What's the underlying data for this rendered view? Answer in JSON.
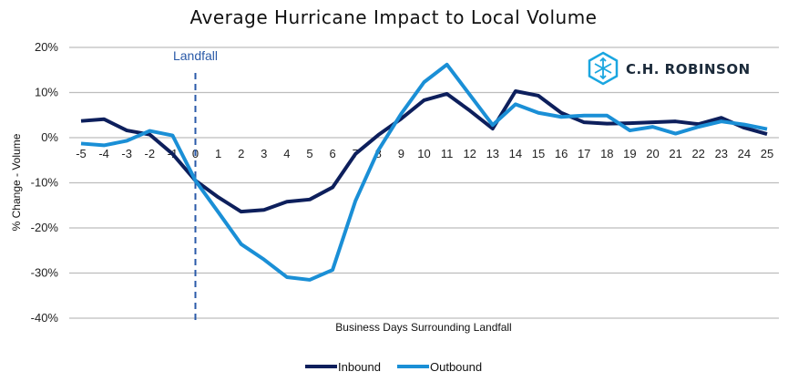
{
  "chart_data": {
    "type": "line",
    "title": "Average Hurricane Impact to Local Volume",
    "xlabel": "Business Days Surrounding Landfall",
    "ylabel": "% Change - Volume",
    "x": [
      -5,
      -4,
      -3,
      -2,
      -1,
      0,
      1,
      2,
      3,
      4,
      5,
      6,
      7,
      8,
      9,
      10,
      11,
      12,
      13,
      14,
      15,
      16,
      17,
      18,
      19,
      20,
      21,
      22,
      23,
      24,
      25
    ],
    "x_tick_labels": [
      "-5",
      "-4",
      "-3",
      "-2",
      "-1",
      "0",
      "1",
      "2",
      "3",
      "4",
      "5",
      "6",
      "7",
      "8",
      "9",
      "10",
      "11",
      "12",
      "13",
      "14",
      "15",
      "16",
      "17",
      "18",
      "19",
      "20",
      "21",
      "22",
      "23",
      "24",
      "25"
    ],
    "ylim": [
      -40,
      20
    ],
    "y_ticks": [
      20,
      10,
      0,
      -10,
      -20,
      -30,
      -40
    ],
    "y_tick_labels": [
      "20%",
      "10%",
      "0%",
      "-10%",
      "-20%",
      "-30%",
      "-40%"
    ],
    "grid": true,
    "legend_position": "bottom-center",
    "series": [
      {
        "name": "Inbound",
        "color": "#0d1f5c",
        "values": [
          3.7,
          4.1,
          1.6,
          0.7,
          -3.6,
          -9.5,
          -13.2,
          -16.4,
          -16.0,
          -14.2,
          -13.7,
          -11.0,
          -3.6,
          0.6,
          4.2,
          8.3,
          9.7,
          6.0,
          2.0,
          10.3,
          9.3,
          5.5,
          3.4,
          3.1,
          3.2,
          3.4,
          3.6,
          3.0,
          4.4,
          2.2,
          0.8
        ]
      },
      {
        "name": "Outbound",
        "color": "#1a8fd6",
        "values": [
          -1.3,
          -1.7,
          -0.7,
          1.5,
          0.5,
          -9.5,
          -16.5,
          -23.6,
          -27.0,
          -30.9,
          -31.5,
          -29.3,
          -14.0,
          -2.8,
          5.3,
          12.3,
          16.2,
          9.5,
          2.8,
          7.4,
          5.5,
          4.6,
          4.9,
          4.9,
          1.6,
          2.4,
          0.9,
          2.4,
          3.6,
          2.9,
          1.9
        ]
      }
    ],
    "annotations": [
      {
        "text": "Landfall",
        "x": 0,
        "style": "dashed vertical line",
        "color": "#2a5aa8"
      }
    ]
  },
  "logo": {
    "text": "C.H. ROBINSON",
    "icon": "cube-arrows-icon",
    "color": "#1aa6e0"
  }
}
